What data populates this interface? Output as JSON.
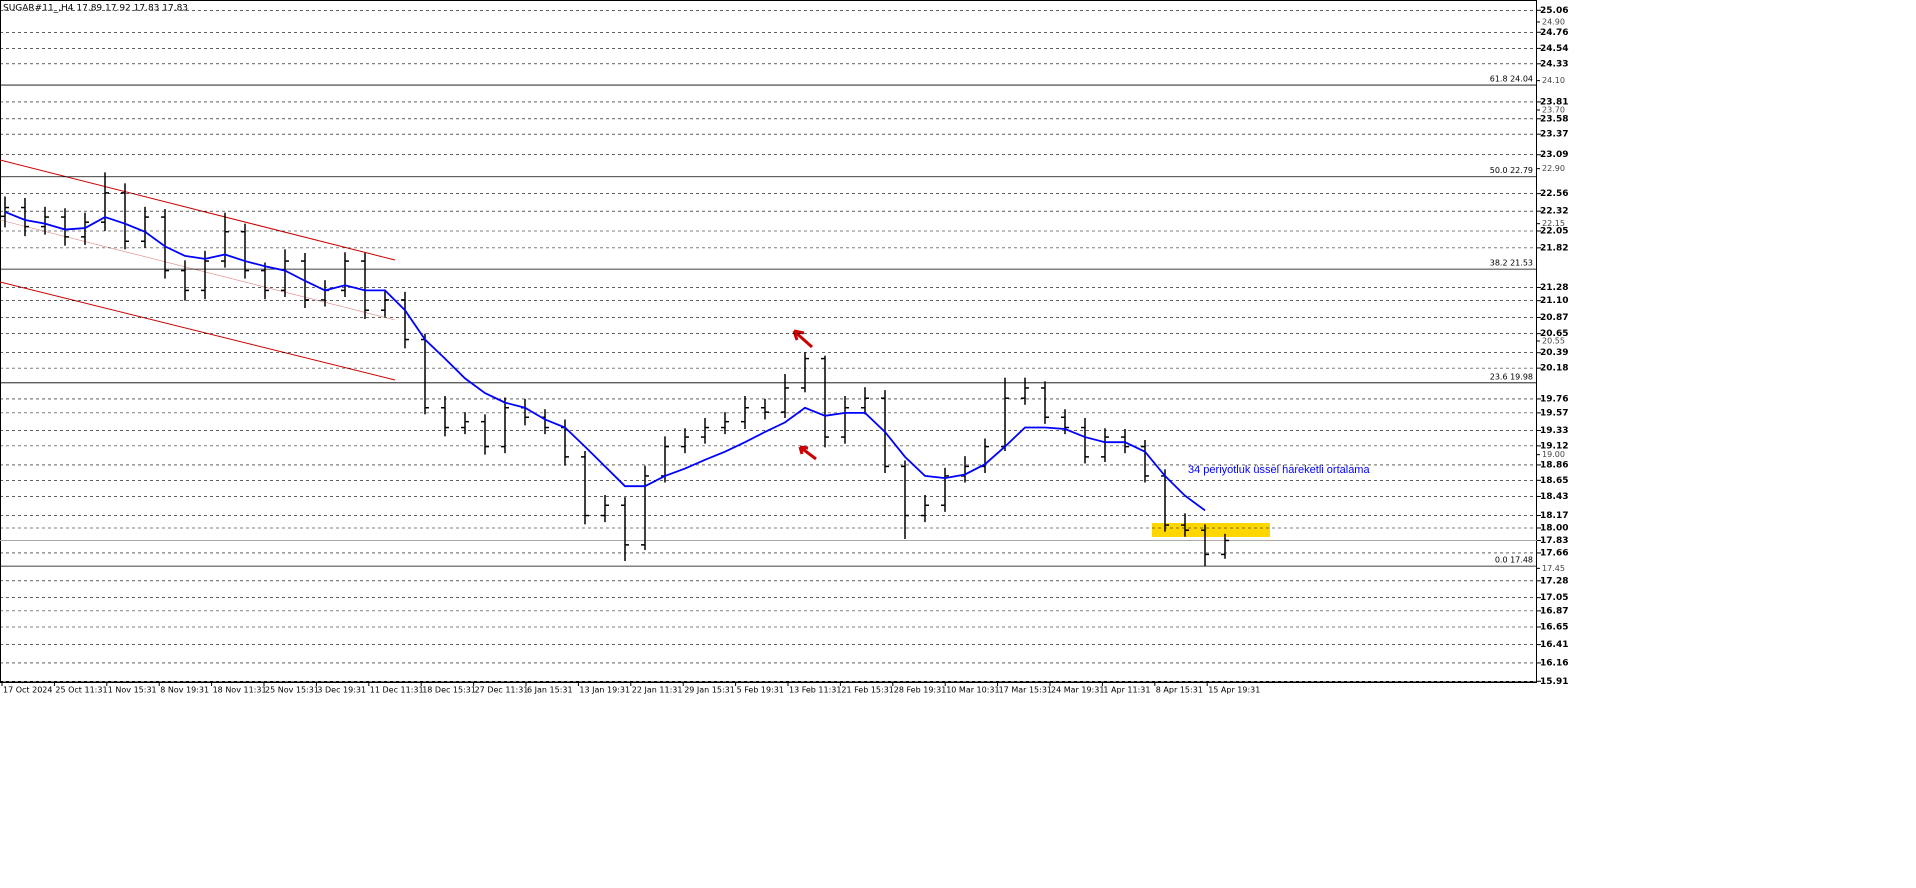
{
  "chart_data": {
    "type": "ohlc",
    "title": "SUGAR#11_,H4  17.89 17.92 17.83 17.83",
    "color": "#000000",
    "x_labels": [
      "17 Oct 2024",
      "25 Oct 11:31",
      "1 Nov 15:31",
      "8 Nov 19:31",
      "18 Nov 11:31",
      "25 Nov 15:31",
      "3 Dec 19:31",
      "11 Dec 11:31",
      "18 Dec 15:31",
      "27 Dec 11:31",
      "6 Jan 15:31",
      "13 Jan 19:31",
      "22 Jan 11:31",
      "29 Jan 15:31",
      "5 Feb 19:31",
      "13 Feb 11:31",
      "21 Feb 15:31",
      "28 Feb 19:31",
      "10 Mar 10:31",
      "17 Mar 15:31",
      "24 Mar 19:31",
      "1 Apr 11:31",
      "8 Apr 15:31",
      "15 Apr 19:31"
    ],
    "open": [
      22.25,
      22.37,
      22.11,
      22.24,
      21.97,
      22.17,
      22.57,
      21.91,
      22.24,
      21.51,
      21.24,
      21.64,
      22.04,
      21.51,
      21.24,
      21.64,
      21.11,
      21.24,
      21.64,
      20.97,
      21.11,
      20.57,
      19.64,
      19.37,
      19.45,
      19.11,
      19.64,
      19.51,
      19.37,
      18.97,
      18.17,
      18.31,
      17.77,
      18.71,
      19.11,
      19.24,
      19.37,
      19.45,
      19.64,
      19.58,
      19.91,
      20.31,
      19.24,
      19.64,
      19.77,
      18.84,
      18.17,
      18.31,
      18.71,
      18.84,
      19.11,
      19.77,
      19.91,
      19.51,
      19.37,
      18.97,
      19.24,
      19.11,
      18.71,
      18.04,
      17.97,
      17.64
    ],
    "high": [
      22.52,
      22.5,
      22.38,
      22.36,
      22.3,
      22.85,
      22.7,
      22.38,
      22.35,
      21.65,
      21.78,
      22.3,
      22.15,
      21.62,
      21.8,
      21.75,
      21.38,
      21.76,
      21.75,
      21.25,
      21.22,
      20.65,
      19.8,
      19.58,
      19.55,
      19.78,
      19.76,
      19.62,
      19.48,
      19.05,
      18.45,
      18.42,
      18.85,
      19.25,
      19.36,
      19.5,
      19.58,
      19.8,
      19.76,
      20.1,
      20.4,
      20.35,
      19.8,
      19.92,
      19.88,
      18.92,
      18.45,
      18.82,
      18.98,
      19.22,
      20.05,
      20.05,
      20.0,
      19.62,
      19.5,
      19.36,
      19.35,
      19.2,
      18.8,
      18.2,
      18.05,
      17.92
    ],
    "low": [
      22.1,
      21.98,
      22.0,
      21.85,
      21.86,
      22.05,
      21.8,
      21.82,
      21.4,
      21.1,
      21.12,
      21.55,
      21.4,
      21.12,
      21.15,
      21.0,
      21.02,
      21.15,
      20.85,
      20.88,
      20.45,
      19.55,
      19.25,
      19.28,
      19.0,
      19.02,
      19.4,
      19.28,
      18.85,
      18.05,
      18.08,
      17.55,
      17.7,
      18.62,
      19.02,
      19.15,
      19.28,
      19.35,
      19.48,
      19.5,
      19.85,
      19.1,
      19.15,
      19.55,
      18.75,
      17.85,
      18.08,
      18.22,
      18.62,
      18.75,
      19.05,
      19.68,
      19.42,
      19.28,
      18.88,
      18.9,
      19.02,
      18.62,
      17.95,
      17.88,
      17.48,
      17.58
    ],
    "close": [
      22.37,
      22.11,
      22.24,
      21.97,
      22.17,
      22.57,
      21.91,
      22.24,
      21.51,
      21.24,
      21.64,
      22.04,
      21.51,
      21.24,
      21.64,
      21.11,
      21.24,
      21.64,
      20.97,
      21.11,
      20.57,
      19.64,
      19.37,
      19.45,
      19.11,
      19.64,
      19.51,
      19.37,
      18.97,
      18.17,
      18.31,
      17.77,
      18.71,
      19.11,
      19.24,
      19.37,
      19.45,
      19.64,
      19.58,
      19.91,
      20.31,
      19.24,
      19.64,
      19.77,
      18.84,
      18.17,
      18.31,
      18.71,
      18.84,
      19.11,
      19.77,
      19.91,
      19.51,
      19.37,
      18.97,
      19.24,
      19.11,
      18.71,
      18.04,
      17.97,
      17.64,
      17.83
    ],
    "series": [
      {
        "name": "34 periyotluk üssel hareketli ortalama",
        "color": "#0000ff",
        "values": [
          22.31,
          22.2,
          22.15,
          22.07,
          22.09,
          22.24,
          22.15,
          22.04,
          21.84,
          21.71,
          21.67,
          21.73,
          21.64,
          21.57,
          21.51,
          21.37,
          21.24,
          21.31,
          21.24,
          21.24,
          20.97,
          20.57,
          20.31,
          20.04,
          19.84,
          19.71,
          19.64,
          19.48,
          19.37,
          19.11,
          18.84,
          18.57,
          18.57,
          18.71,
          18.81,
          18.93,
          19.04,
          19.17,
          19.31,
          19.44,
          19.64,
          19.53,
          19.57,
          19.57,
          19.31,
          18.97,
          18.71,
          18.68,
          18.73,
          18.87,
          19.11,
          19.37,
          19.37,
          19.35,
          19.24,
          19.17,
          19.17,
          19.04,
          18.71,
          18.44,
          18.24,
          null
        ]
      }
    ],
    "levels": [
      {
        "label": "61.8 24.04",
        "value": 24.04
      },
      {
        "label": "50.0 22.79",
        "value": 22.79
      },
      {
        "label": "38.2 21.53",
        "value": 21.53
      },
      {
        "label": "23.6 19.98",
        "value": 19.98
      },
      {
        "label": "0.0 17.48",
        "value": 17.48
      }
    ],
    "current_price": 17.83,
    "ylim": [
      15.9,
      25.2
    ],
    "yticks": [
      25.06,
      24.76,
      24.54,
      24.33,
      23.81,
      23.58,
      23.37,
      23.09,
      22.56,
      22.32,
      22.05,
      21.82,
      21.28,
      {
        "value": 21.1,
        "label": "21.10"
      },
      20.87,
      20.65,
      20.39,
      20.18,
      19.76,
      19.57,
      19.33,
      19.12,
      18.86,
      18.65,
      18.43,
      18.17,
      {
        "value": 18,
        "label": "18.00"
      },
      17.83,
      17.66,
      17.28,
      17.05,
      16.87,
      16.65,
      16.41,
      16.16,
      15.91
    ],
    "yticks_minor": [
      {
        "value": 24.9,
        "label": "24.90"
      },
      {
        "value": 24.1,
        "label": "24.10"
      },
      {
        "value": 23.7,
        "label": "23.70"
      },
      {
        "value": 22.9,
        "label": "22.90"
      },
      22.15,
      20.55,
      {
        "value": 19,
        "label": "19.00"
      },
      17.45
    ],
    "grid": true
  }
}
